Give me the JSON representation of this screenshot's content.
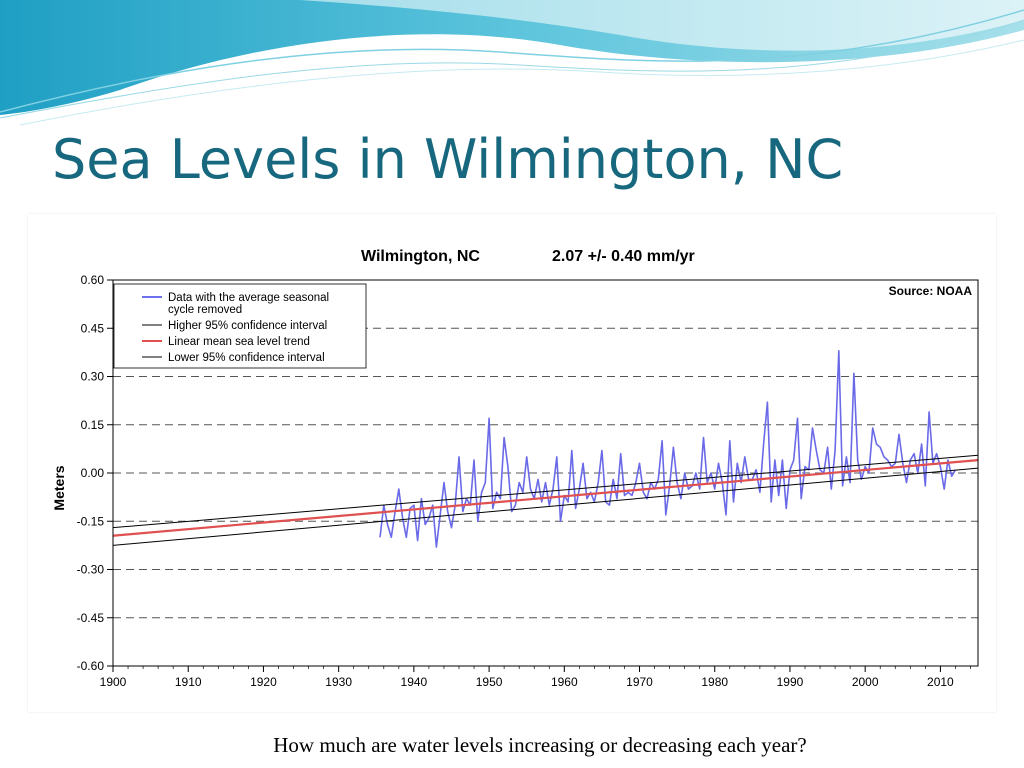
{
  "slide": {
    "title": "Sea Levels in Wilmington, NC",
    "question": "How much are water levels increasing or decreasing each year?",
    "accent_color": "#17687e"
  },
  "chart_data": {
    "type": "line",
    "title": "Wilmington, NC",
    "rate": "2.07 +/- 0.40 mm/yr",
    "source": "Source: NOAA",
    "xlabel": "",
    "ylabel": "Meters",
    "xlim": [
      1900,
      2015
    ],
    "ylim": [
      -0.6,
      0.6
    ],
    "x_ticks": [
      "1900",
      "1910",
      "1920",
      "1930",
      "1940",
      "1950",
      "1960",
      "1970",
      "1980",
      "1990",
      "2000",
      "2010"
    ],
    "y_ticks": [
      "0.60",
      "0.45",
      "0.30",
      "0.15",
      "0.00",
      "-0.15",
      "-0.30",
      "-0.45",
      "-0.60"
    ],
    "grid": "horizontal dashed",
    "legend_position": "top-left",
    "legend": [
      {
        "label": "Data with the average seasonal",
        "label2": "cycle removed",
        "color": "#6a6ae8"
      },
      {
        "label": "Higher 95% confidence interval",
        "color": "#000000"
      },
      {
        "label": "Linear mean sea level trend",
        "color": "#e05050"
      },
      {
        "label": "Lower 95% confidence interval",
        "color": "#000000"
      }
    ],
    "series": [
      {
        "name": "Data with the average seasonal cycle removed",
        "color": "#6a6ae8",
        "x_start": 1935.5,
        "x_step": 0.5,
        "values": [
          -0.2,
          -0.1,
          -0.16,
          -0.2,
          -0.12,
          -0.05,
          -0.14,
          -0.2,
          -0.11,
          -0.1,
          -0.21,
          -0.08,
          -0.16,
          -0.14,
          -0.1,
          -0.23,
          -0.13,
          -0.03,
          -0.12,
          -0.17,
          -0.1,
          0.05,
          -0.12,
          -0.08,
          -0.1,
          0.04,
          -0.15,
          -0.06,
          -0.03,
          0.17,
          -0.11,
          -0.06,
          -0.08,
          0.11,
          0.02,
          -0.12,
          -0.1,
          -0.03,
          -0.06,
          0.05,
          -0.05,
          -0.08,
          -0.02,
          -0.09,
          -0.03,
          -0.1,
          -0.05,
          0.05,
          -0.15,
          -0.07,
          -0.09,
          0.07,
          -0.11,
          -0.05,
          0.03,
          -0.08,
          -0.06,
          -0.09,
          -0.03,
          0.07,
          -0.09,
          -0.1,
          -0.02,
          -0.08,
          0.06,
          -0.07,
          -0.06,
          -0.07,
          -0.03,
          0.03,
          -0.06,
          -0.08,
          -0.03,
          -0.05,
          -0.02,
          0.1,
          -0.13,
          -0.04,
          0.08,
          -0.03,
          -0.08,
          0.0,
          -0.05,
          -0.04,
          0.0,
          -0.05,
          0.11,
          -0.03,
          0.0,
          -0.05,
          0.03,
          -0.03,
          -0.13,
          0.1,
          -0.09,
          0.03,
          -0.03,
          0.05,
          -0.02,
          -0.02,
          0.01,
          -0.06,
          0.09,
          0.22,
          -0.09,
          0.04,
          -0.07,
          0.04,
          -0.11,
          0.01,
          0.04,
          0.17,
          -0.08,
          0.02,
          0.01,
          0.14,
          0.07,
          0.01,
          0.0,
          0.08,
          -0.05,
          0.07,
          0.38,
          -0.04,
          0.05,
          -0.03,
          0.31,
          0.04,
          -0.02,
          0.02,
          0.0,
          0.14,
          0.09,
          0.08,
          0.05,
          0.04,
          0.02,
          0.03,
          0.12,
          0.03,
          -0.03,
          0.04,
          0.06,
          0.0,
          0.09,
          -0.04,
          0.19,
          0.03,
          0.06,
          0.02,
          -0.05,
          0.04,
          -0.01,
          0.01
        ],
        "note": "values are approximate; data shown 1935–2012"
      },
      {
        "name": "Higher 95% confidence interval",
        "color": "#000000",
        "x": [
          1900,
          2015
        ],
        "y": [
          -0.17,
          0.055
        ]
      },
      {
        "name": "Linear mean sea level trend",
        "color": "#e05050",
        "x": [
          1900,
          2015
        ],
        "y": [
          -0.195,
          0.04
        ]
      },
      {
        "name": "Lower 95% confidence interval",
        "color": "#000000",
        "x": [
          1900,
          2015
        ],
        "y": [
          -0.225,
          0.015
        ]
      }
    ]
  }
}
